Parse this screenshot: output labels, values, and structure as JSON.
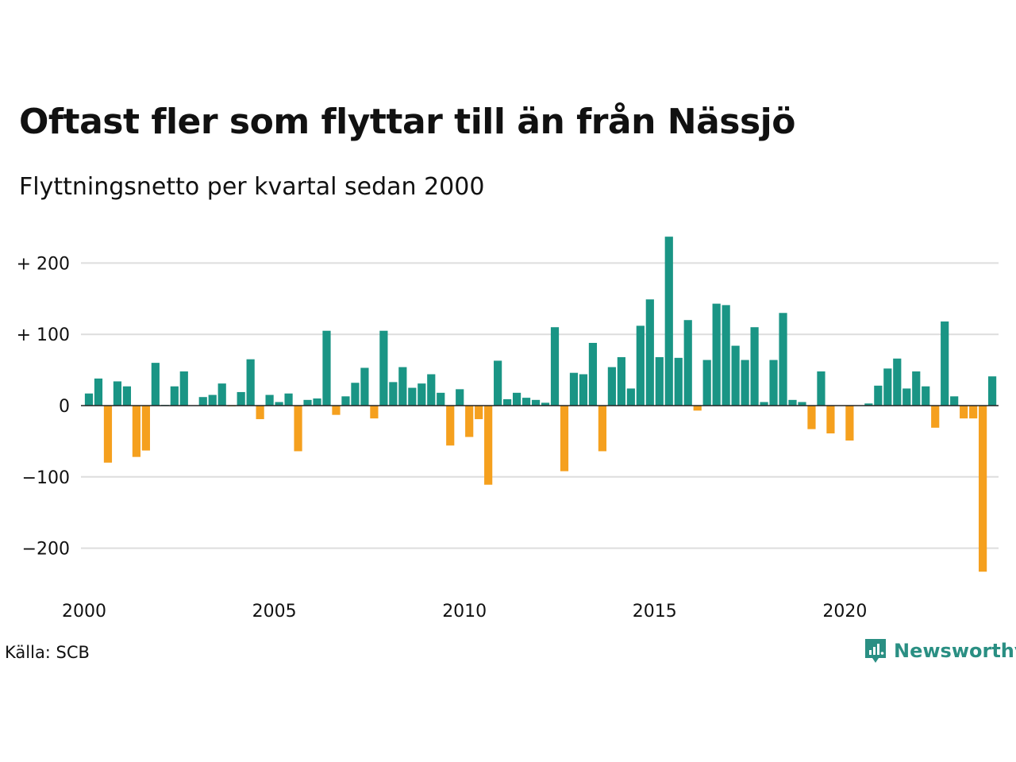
{
  "title": "Oftast fler som flyttar till än från Nässjö",
  "subtitle": "Flyttningsnetto per kvartal sedan 2000",
  "source": "Källa: SCB",
  "brand": "Newsworthy",
  "colors": {
    "positive": "#1a9585",
    "negative": "#f5a01e",
    "grid": "#dddddd",
    "zero": "#222222",
    "brand": "#2a8f83"
  },
  "chart_data": {
    "type": "bar",
    "xlabel": "",
    "ylabel": "",
    "ylim": [
      -250,
      250
    ],
    "y_ticks": [
      {
        "value": 200,
        "label": "+ 200"
      },
      {
        "value": 100,
        "label": "+ 100"
      },
      {
        "value": 0,
        "label": "0"
      },
      {
        "value": -100,
        "label": "−100"
      },
      {
        "value": -200,
        "label": "−200"
      }
    ],
    "x_ticks": [
      {
        "index": 0,
        "label": "2000"
      },
      {
        "index": 20,
        "label": "2005"
      },
      {
        "index": 40,
        "label": "2010"
      },
      {
        "index": 60,
        "label": "2015"
      },
      {
        "index": 80,
        "label": "2020"
      }
    ],
    "start_period": "2000 Q1",
    "grid": true,
    "values": [
      17,
      38,
      -80,
      34,
      27,
      -72,
      -63,
      60,
      1,
      27,
      48,
      0,
      12,
      15,
      31,
      -1,
      19,
      65,
      -19,
      15,
      5,
      17,
      -64,
      8,
      10,
      105,
      -13,
      13,
      32,
      53,
      -18,
      105,
      33,
      54,
      25,
      31,
      44,
      18,
      -56,
      23,
      -44,
      -19,
      -111,
      63,
      9,
      18,
      11,
      8,
      4,
      110,
      -92,
      46,
      44,
      88,
      -64,
      54,
      68,
      24,
      112,
      149,
      68,
      237,
      67,
      120,
      -7,
      64,
      143,
      141,
      84,
      64,
      110,
      5,
      64,
      130,
      8,
      5,
      -33,
      48,
      -39,
      0,
      -49,
      0,
      3,
      28,
      52,
      66,
      24,
      48,
      27,
      -31,
      118,
      13,
      -18,
      -18,
      -233,
      41
    ]
  }
}
